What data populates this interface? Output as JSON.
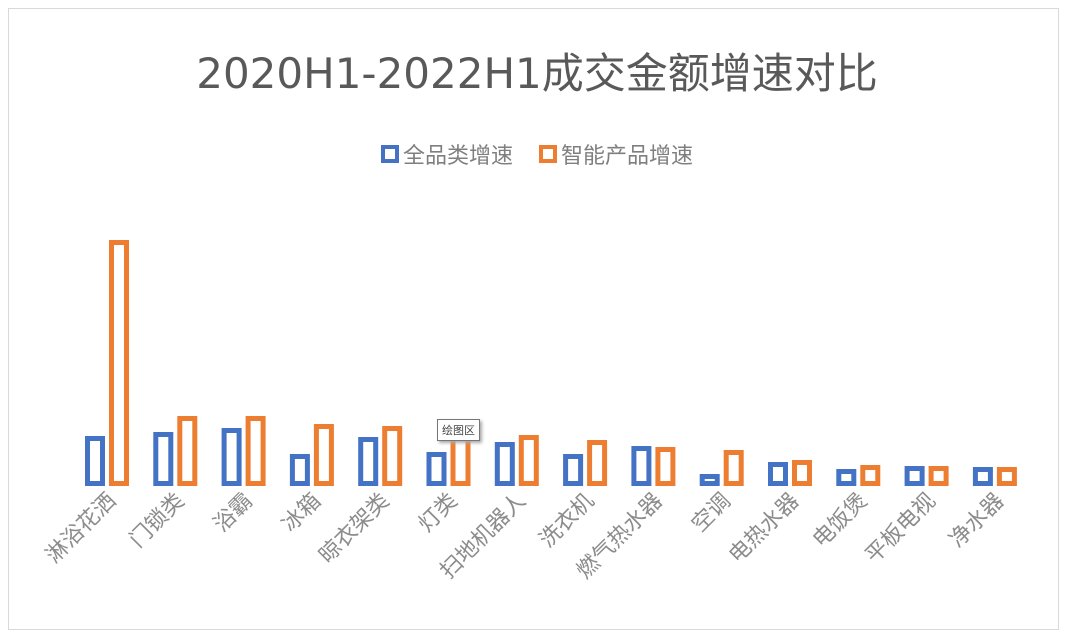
{
  "chart_data": {
    "type": "bar",
    "title": "2020H1-2022H1成交金额增速对比",
    "xlabel": "",
    "ylabel": "",
    "legend_position": "top",
    "grid": false,
    "categories": [
      "淋浴花洒",
      "门锁类",
      "浴霸",
      "冰箱",
      "晾衣架类",
      "灯类",
      "扫地机器人",
      "洗衣机",
      "燃气热水器",
      "空调",
      "电热水器",
      "电饭煲",
      "平板电视",
      "净水器"
    ],
    "series": [
      {
        "name": "全品类增速",
        "color": "#4472c4",
        "values": [
          50,
          54,
          58,
          32,
          49,
          34,
          44,
          32,
          40,
          12,
          24,
          17,
          20,
          19
        ]
      },
      {
        "name": "智能产品增速",
        "color": "#ed7d31",
        "values": [
          246,
          70,
          70,
          62,
          60,
          53,
          51,
          46,
          39,
          36,
          26,
          21,
          20,
          19
        ]
      }
    ],
    "ylim": [
      0,
      250
    ]
  },
  "tooltip": "绘图区"
}
